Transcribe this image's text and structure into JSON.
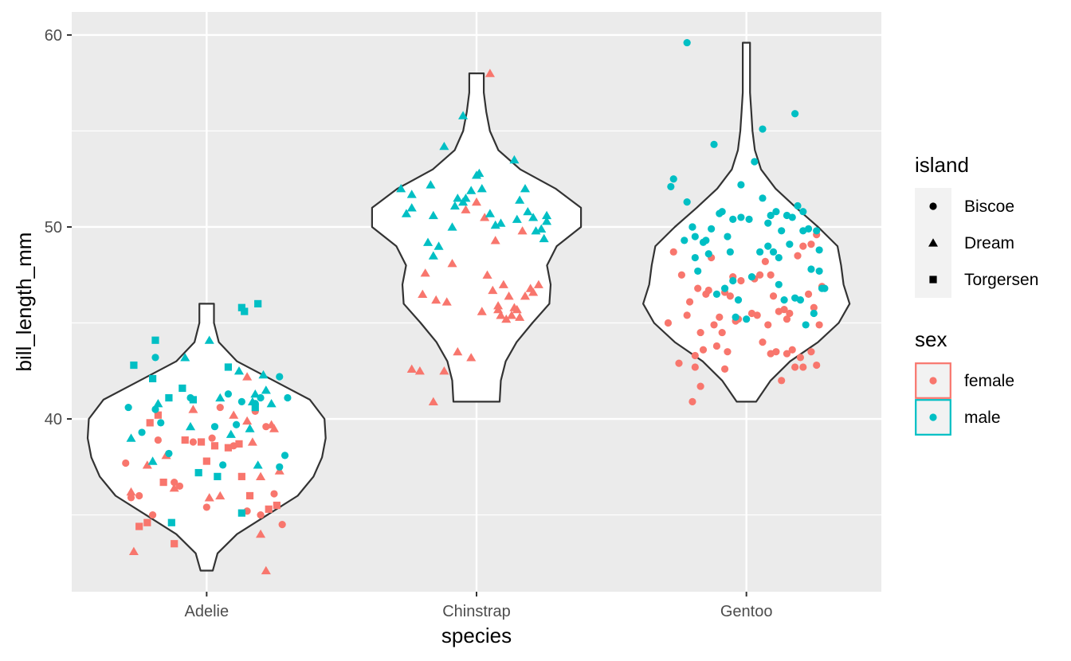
{
  "chart_data": {
    "type": "violin",
    "xlabel": "species",
    "ylabel": "bill_length_mm",
    "categories": [
      "Adelie",
      "Chinstrap",
      "Gentoo"
    ],
    "ylim": [
      31,
      61.2
    ],
    "yticks": [
      40,
      50,
      60
    ],
    "y_minor_ticks": [
      35,
      45,
      55
    ],
    "grid": true,
    "background": "#ebebeb",
    "legend_placement": "right",
    "violins": [
      {
        "category": "Adelie",
        "ymin": 32.1,
        "ymax": 46.0,
        "profile": [
          [
            32.1,
            0.05
          ],
          [
            33.0,
            0.09
          ],
          [
            34.0,
            0.25
          ],
          [
            35.0,
            0.5
          ],
          [
            36.0,
            0.75
          ],
          [
            37.0,
            0.88
          ],
          [
            38.0,
            0.95
          ],
          [
            39.0,
            0.98
          ],
          [
            40.0,
            0.97
          ],
          [
            41.0,
            0.85
          ],
          [
            42.0,
            0.55
          ],
          [
            43.0,
            0.25
          ],
          [
            44.0,
            0.1
          ],
          [
            45.0,
            0.06
          ],
          [
            46.0,
            0.06
          ]
        ]
      },
      {
        "category": "Chinstrap",
        "ymin": 40.9,
        "ymax": 58.0,
        "profile": [
          [
            40.9,
            0.19
          ],
          [
            42.0,
            0.2
          ],
          [
            43.0,
            0.24
          ],
          [
            44.0,
            0.33
          ],
          [
            45.0,
            0.46
          ],
          [
            46.0,
            0.6
          ],
          [
            47.0,
            0.61
          ],
          [
            48.0,
            0.58
          ],
          [
            49.0,
            0.66
          ],
          [
            50.0,
            0.86
          ],
          [
            51.0,
            0.86
          ],
          [
            52.0,
            0.65
          ],
          [
            53.0,
            0.36
          ],
          [
            54.0,
            0.18
          ],
          [
            55.0,
            0.11
          ],
          [
            56.0,
            0.08
          ],
          [
            57.0,
            0.06
          ],
          [
            58.0,
            0.06
          ]
        ]
      },
      {
        "category": "Gentoo",
        "ymin": 40.9,
        "ymax": 59.6,
        "profile": [
          [
            40.9,
            0.08
          ],
          [
            42.0,
            0.2
          ],
          [
            43.0,
            0.36
          ],
          [
            44.0,
            0.59
          ],
          [
            45.0,
            0.76
          ],
          [
            46.0,
            0.85
          ],
          [
            47.0,
            0.8
          ],
          [
            48.0,
            0.78
          ],
          [
            49.0,
            0.75
          ],
          [
            50.0,
            0.59
          ],
          [
            51.0,
            0.41
          ],
          [
            52.0,
            0.24
          ],
          [
            53.0,
            0.12
          ],
          [
            54.0,
            0.07
          ],
          [
            55.0,
            0.05
          ],
          [
            56.0,
            0.04
          ],
          [
            57.0,
            0.03
          ],
          [
            58.0,
            0.03
          ],
          [
            59.6,
            0.03
          ]
        ]
      }
    ],
    "legends": [
      {
        "title": "island",
        "kind": "shape",
        "entries": [
          {
            "label": "Biscoe",
            "shape": "circle"
          },
          {
            "label": "Dream",
            "shape": "triangle"
          },
          {
            "label": "Torgersen",
            "shape": "square"
          }
        ]
      },
      {
        "title": "sex",
        "kind": "color",
        "entries": [
          {
            "label": "female",
            "color": "#f8766d"
          },
          {
            "label": "male",
            "color": "#00bfc4"
          }
        ]
      }
    ],
    "series": [
      {
        "species": "Adelie",
        "sex": "female",
        "island": "Biscoe",
        "x_jitter": [
          -0.3,
          -0.25,
          -0.2,
          -0.1,
          0.0,
          0.15,
          0.28,
          -0.05,
          0.1,
          0.25,
          -0.18,
          0.05,
          0.22,
          -0.28,
          -0.12,
          0.18,
          0.02,
          0.2
        ],
        "y": [
          37.7,
          36.0,
          35.0,
          36.5,
          35.4,
          35.2,
          34.5,
          38.8,
          38.6,
          36.1,
          38.9,
          40.6,
          39.6,
          35.9,
          36.7,
          40.4,
          39.0,
          35.0
        ]
      },
      {
        "species": "Adelie",
        "sex": "female",
        "island": "Dream",
        "x_jitter": [
          -0.27,
          -0.12,
          0.1,
          0.15,
          0.22,
          0.2,
          -0.28,
          0.25,
          0.05,
          -0.05,
          -0.22,
          0.17,
          0.15,
          0.27,
          -0.15,
          0.2,
          0.01,
          0.24
        ],
        "y": [
          33.1,
          36.4,
          40.2,
          42.2,
          32.1,
          34.0,
          36.2,
          39.5,
          36.0,
          40.5,
          37.6,
          38.8,
          39.9,
          37.3,
          38.1,
          37.0,
          35.9,
          39.7
        ]
      },
      {
        "species": "Adelie",
        "sex": "female",
        "island": "Torgersen",
        "x_jitter": [
          -0.25,
          -0.22,
          -0.12,
          -0.18,
          -0.02,
          0.08,
          0.16,
          0.26,
          0.23,
          -0.16,
          0.03,
          0.13,
          -0.21,
          -0.08,
          0.0,
          0.12
        ],
        "y": [
          34.4,
          34.6,
          33.5,
          40.2,
          38.8,
          38.5,
          36.0,
          35.5,
          35.3,
          36.7,
          38.6,
          37.0,
          39.8,
          38.9,
          37.8,
          38.7
        ]
      },
      {
        "species": "Adelie",
        "sex": "male",
        "island": "Biscoe",
        "x_jitter": [
          -0.29,
          -0.19,
          -0.06,
          0.13,
          0.3,
          0.27,
          0.11,
          0.06,
          -0.14,
          -0.19,
          -0.24,
          0.18,
          0.2,
          0.03,
          0.08,
          0.27,
          -0.17,
          0.29
        ],
        "y": [
          40.6,
          43.2,
          41.1,
          40.9,
          41.1,
          42.2,
          39.7,
          37.6,
          38.2,
          40.5,
          39.3,
          40.8,
          41.1,
          39.6,
          41.3,
          37.5,
          39.8,
          38.1
        ]
      },
      {
        "species": "Adelie",
        "sex": "male",
        "island": "Dream",
        "x_jitter": [
          -0.18,
          0.01,
          0.12,
          0.18,
          0.21,
          -0.08,
          -0.28,
          0.17,
          0.22,
          0.19,
          -0.2,
          0.09,
          0.24,
          0.16,
          -0.06,
          0.05
        ],
        "y": [
          40.8,
          44.1,
          42.5,
          41.3,
          42.3,
          43.2,
          39.0,
          40.9,
          41.5,
          37.6,
          37.8,
          39.2,
          40.8,
          39.5,
          39.6,
          41.1
        ]
      },
      {
        "species": "Adelie",
        "sex": "male",
        "island": "Torgersen",
        "x_jitter": [
          -0.19,
          -0.2,
          -0.27,
          -0.13,
          0.13,
          0.14,
          0.19,
          -0.09,
          -0.03,
          0.08,
          -0.05,
          0.13,
          -0.14,
          0.18,
          0.04
        ],
        "y": [
          44.1,
          42.1,
          42.8,
          34.6,
          45.8,
          45.6,
          46.0,
          41.6,
          37.2,
          42.7,
          41.0,
          35.1,
          41.1,
          40.6,
          37.0
        ]
      },
      {
        "species": "Chinstrap",
        "sex": "female",
        "island": "Dream",
        "x_jitter": [
          0.05,
          -0.24,
          -0.21,
          -0.12,
          -0.16,
          -0.07,
          -0.02,
          0.02,
          -0.19,
          0.06,
          0.1,
          0.15,
          0.08,
          -0.04,
          0.0,
          0.12,
          0.21,
          0.23,
          0.18,
          0.04,
          0.11,
          0.13,
          -0.11,
          0.16,
          0.17,
          0.07,
          0.09,
          0.2,
          0.14,
          -0.15,
          -0.2,
          -0.09,
          0.03,
          0.08
        ],
        "y": [
          58.0,
          42.6,
          42.5,
          42.5,
          40.9,
          43.5,
          43.2,
          45.6,
          47.6,
          46.7,
          47.0,
          45.7,
          45.7,
          50.9,
          51.3,
          46.4,
          46.6,
          47.0,
          46.4,
          47.5,
          45.2,
          45.4,
          46.1,
          45.3,
          49.8,
          49.3,
          45.4,
          46.8,
          45.8,
          46.2,
          46.5,
          48.1,
          50.5,
          45.9
        ]
      },
      {
        "species": "Chinstrap",
        "sex": "male",
        "island": "Dream",
        "x_jitter": [
          -0.05,
          -0.12,
          -0.28,
          -0.24,
          -0.26,
          -0.17,
          -0.18,
          -0.16,
          -0.14,
          -0.09,
          -0.07,
          -0.05,
          -0.04,
          -0.02,
          0.0,
          0.01,
          0.02,
          0.07,
          0.05,
          0.09,
          0.15,
          0.14,
          0.16,
          0.18,
          0.19,
          0.26,
          0.21,
          0.24,
          0.25,
          0.26,
          0.22,
          -0.24,
          -0.16,
          -0.08
        ],
        "y": [
          55.8,
          54.2,
          52.0,
          51.7,
          50.7,
          52.2,
          49.2,
          48.5,
          49.0,
          50.0,
          51.5,
          51.3,
          51.5,
          51.9,
          52.7,
          52.8,
          52.0,
          50.1,
          50.7,
          50.2,
          50.4,
          53.5,
          51.4,
          52.0,
          50.8,
          50.6,
          50.5,
          49.9,
          49.4,
          50.3,
          49.8,
          51.0,
          50.6,
          51.1
        ]
      },
      {
        "species": "Gentoo",
        "sex": "female",
        "island": "Biscoe",
        "x_jitter": [
          -0.2,
          -0.17,
          -0.25,
          -0.19,
          -0.16,
          -0.11,
          -0.09,
          -0.07,
          -0.04,
          -0.02,
          0.03,
          0.05,
          0.07,
          0.09,
          0.12,
          0.16,
          0.19,
          0.21,
          0.24,
          0.26,
          0.28,
          0.23,
          0.2,
          0.18,
          0.13,
          0.11,
          0.09,
          0.08,
          0.06,
          0.04,
          -0.03,
          -0.06,
          -0.1,
          -0.14,
          -0.17,
          -0.21,
          -0.24,
          -0.27,
          -0.29,
          -0.22,
          -0.18,
          -0.15,
          -0.12,
          -0.13,
          -0.08,
          -0.05,
          0.15,
          0.17,
          0.26,
          0.21,
          0.02,
          -0.19,
          0.1,
          0.15,
          0.27,
          0.25,
          0.24,
          -0.08,
          0.14
        ],
        "y": [
          40.9,
          41.7,
          42.9,
          43.3,
          43.6,
          43.8,
          44.5,
          43.5,
          45.1,
          47.2,
          47.3,
          47.5,
          48.2,
          47.5,
          45.6,
          45.5,
          48.5,
          49.0,
          49.1,
          49.6,
          46.9,
          46.5,
          43.2,
          42.7,
          42.0,
          43.5,
          43.4,
          44.9,
          44.0,
          45.4,
          45.2,
          46.4,
          45.3,
          46.7,
          44.5,
          46.1,
          47.5,
          48.7,
          45.0,
          45.4,
          46.8,
          46.5,
          44.9,
          48.4,
          46.6,
          47.4,
          45.2,
          43.6,
          42.8,
          42.7,
          45.5,
          42.7,
          46.4,
          43.4,
          44.9,
          45.8,
          43.5,
          42.6,
          45.7
        ]
      },
      {
        "species": "Gentoo",
        "sex": "male",
        "island": "Biscoe",
        "x_jitter": [
          -0.22,
          -0.27,
          -0.28,
          -0.22,
          -0.2,
          -0.19,
          -0.15,
          -0.13,
          -0.1,
          -0.07,
          -0.05,
          -0.02,
          0.01,
          0.03,
          0.06,
          0.08,
          0.11,
          0.12,
          0.17,
          0.19,
          0.21,
          0.26,
          0.27,
          0.28,
          0.25,
          0.22,
          0.2,
          0.18,
          0.14,
          0.12,
          0.1,
          0.08,
          0.05,
          0.02,
          0.0,
          -0.03,
          -0.05,
          -0.08,
          -0.11,
          -0.14,
          -0.18,
          -0.2,
          -0.23,
          0.18,
          0.06,
          -0.12,
          0.27,
          0.21,
          0.29,
          0.15,
          0.16,
          -0.02,
          0.09,
          -0.06,
          -0.09,
          -0.16,
          -0.19,
          0.23,
          -0.04,
          0.13,
          0.24
        ],
        "y": [
          59.6,
          52.5,
          52.1,
          51.3,
          50.0,
          49.5,
          49.3,
          49.9,
          50.7,
          49.5,
          50.4,
          50.5,
          50.4,
          53.4,
          51.5,
          50.2,
          50.8,
          48.4,
          50.5,
          51.1,
          49.8,
          49.8,
          48.8,
          46.8,
          45.5,
          44.9,
          46.2,
          46.3,
          46.2,
          47.0,
          48.7,
          49.0,
          48.7,
          47.4,
          45.2,
          46.2,
          47.2,
          46.8,
          46.5,
          48.6,
          47.7,
          50.0,
          49.3,
          55.9,
          55.1,
          54.3,
          47.7,
          50.8,
          46.8,
          50.6,
          49.1,
          52.2,
          50.6,
          48.7,
          50.8,
          49.2,
          48.4,
          49.9,
          45.3,
          49.8,
          47.8
        ]
      }
    ]
  }
}
